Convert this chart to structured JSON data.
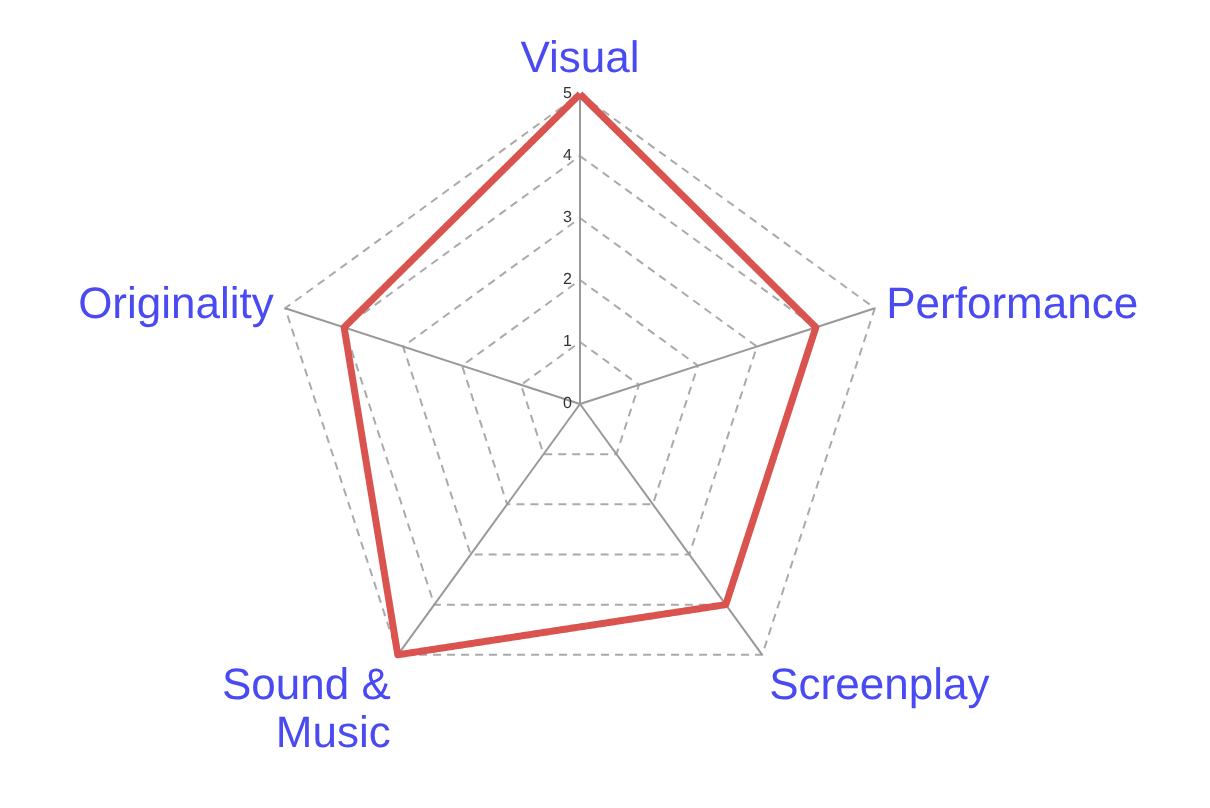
{
  "chart_data": {
    "type": "radar",
    "categories": [
      "Visual",
      "Performance",
      "Screenplay",
      "Sound & Music",
      "Originality"
    ],
    "series": [
      {
        "color": "#d9534f",
        "values": [
          5,
          4,
          4,
          5,
          4
        ]
      }
    ],
    "ylim": [
      0,
      5
    ],
    "yticks": [
      0,
      1,
      2,
      3,
      4,
      5
    ],
    "grid": true,
    "line_style": "solid",
    "marker": "none"
  }
}
